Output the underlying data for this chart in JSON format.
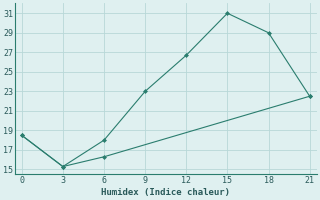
{
  "line1_x": [
    0,
    3,
    6,
    9,
    12,
    15,
    18,
    21
  ],
  "line1_y": [
    18.5,
    15.3,
    18.0,
    23.0,
    26.7,
    31.0,
    29.0,
    22.5
  ],
  "line2_x": [
    0,
    3,
    6,
    21
  ],
  "line2_y": [
    18.5,
    15.3,
    16.3,
    22.5
  ],
  "color": "#2a7d6e",
  "bg_color": "#dff0f0",
  "grid_color": "#b8d8d8",
  "xlabel": "Humidex (Indice chaleur)",
  "xlim": [
    -0.5,
    21.5
  ],
  "ylim": [
    14.5,
    32.0
  ],
  "xticks": [
    0,
    3,
    6,
    9,
    12,
    15,
    18,
    21
  ],
  "yticks": [
    15,
    17,
    19,
    21,
    23,
    25,
    27,
    29,
    31
  ],
  "figsize": [
    3.2,
    2.0
  ],
  "dpi": 100
}
